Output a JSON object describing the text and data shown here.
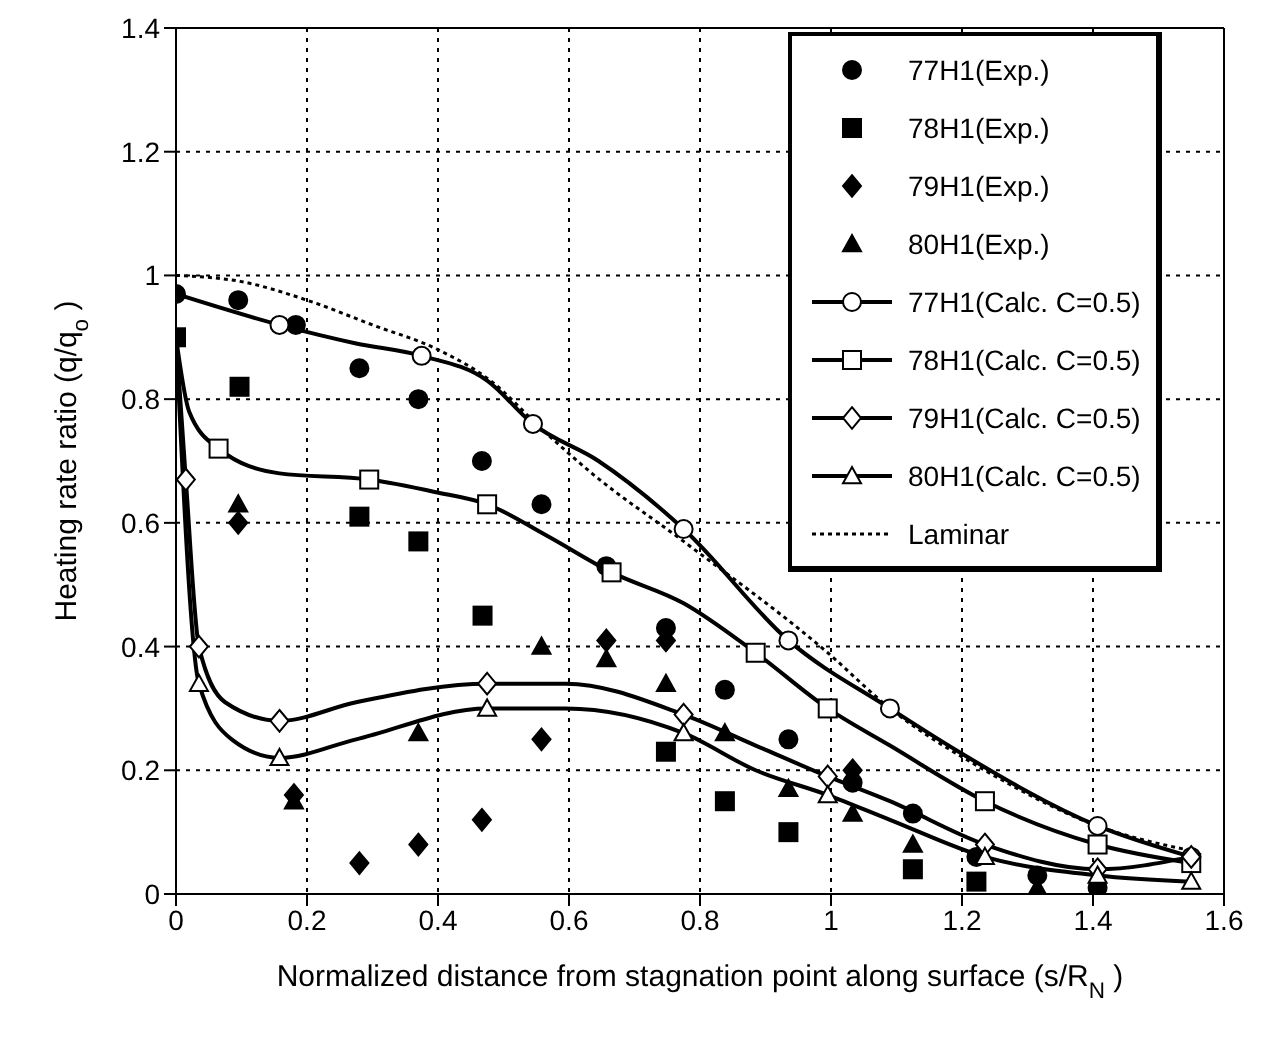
{
  "chart_data": {
    "type": "line",
    "xlabel": "Normalized distance from stagnation point along surface (s/R$_{N}$)",
    "ylabel": "Heating rate ratio (q/q$_{o}$)",
    "xlim": [
      0,
      1.6
    ],
    "xticks": [
      0,
      0.2,
      0.4,
      0.6,
      0.8,
      1,
      1.2,
      1.4,
      1.6
    ],
    "ylim": [
      0,
      1.4
    ],
    "yticks": [
      0,
      0.2,
      0.4,
      0.6,
      0.8,
      1,
      1.2,
      1.4
    ],
    "grid": true,
    "legend": "top right",
    "series": [
      {
        "name": "77H1(Exp.)",
        "type": "scatter",
        "marker": "circle",
        "color": "#000000",
        "x": [
          0,
          0.095,
          0.183,
          0.28,
          0.37,
          0.467,
          0.558,
          0.657,
          0.748,
          0.838,
          0.935,
          1.033,
          1.125,
          1.222,
          1.315,
          1.407
        ],
        "values": [
          0.97,
          0.96,
          0.92,
          0.85,
          0.8,
          0.7,
          0.63,
          0.53,
          0.43,
          0.33,
          0.25,
          0.18,
          0.13,
          0.06,
          0.03,
          0.01
        ]
      },
      {
        "name": "78H1(Exp.)",
        "type": "scatter",
        "marker": "square",
        "color": "#000000",
        "x": [
          0,
          0.097,
          0.28,
          0.37,
          0.468,
          0.748,
          0.838,
          0.935,
          1.125,
          1.222
        ],
        "values": [
          0.9,
          0.82,
          0.61,
          0.57,
          0.45,
          0.23,
          0.15,
          0.1,
          0.04,
          0.02
        ]
      },
      {
        "name": "79H1(Exp.)",
        "type": "scatter",
        "marker": "diamond",
        "color": "#000000",
        "x": [
          0.095,
          0.18,
          0.28,
          0.37,
          0.467,
          0.558,
          0.657,
          0.748,
          1.033
        ],
        "values": [
          0.6,
          0.16,
          0.05,
          0.08,
          0.12,
          0.25,
          0.41,
          0.41,
          0.2
        ]
      },
      {
        "name": "80H1(Exp.)",
        "type": "scatter",
        "marker": "triangle",
        "color": "#000000",
        "x": [
          0.095,
          0.18,
          0.37,
          0.558,
          0.657,
          0.748,
          0.838,
          0.935,
          1.033,
          1.125,
          1.315
        ],
        "values": [
          0.63,
          0.15,
          0.26,
          0.4,
          0.38,
          0.34,
          0.26,
          0.17,
          0.13,
          0.08,
          0.01
        ]
      },
      {
        "name": "77H1(Calc. C=0.5)",
        "marker": "circle",
        "color": "#000000",
        "x": [
          0,
          0.158,
          0.275,
          0.375,
          0.475,
          0.545,
          0.645,
          0.775,
          0.935,
          1.09,
          1.195,
          1.407,
          1.55
        ],
        "values": [
          0.97,
          0.92,
          0.89,
          0.87,
          0.83,
          0.76,
          0.7,
          0.59,
          0.41,
          0.3,
          0.23,
          0.11,
          0.06
        ]
      },
      {
        "name": "78H1(Calc. C=0.5)",
        "marker": "square",
        "color": "#000000",
        "x": [
          0,
          0.02,
          0.065,
          0.158,
          0.295,
          0.395,
          0.475,
          0.565,
          0.665,
          0.775,
          0.885,
          0.995,
          1.09,
          1.235,
          1.407,
          1.55
        ],
        "values": [
          0.9,
          0.78,
          0.72,
          0.68,
          0.67,
          0.65,
          0.63,
          0.58,
          0.52,
          0.47,
          0.39,
          0.3,
          0.24,
          0.15,
          0.08,
          0.05
        ]
      },
      {
        "name": "79H1(Calc. C=0.5)",
        "marker": "diamond",
        "color": "#000000",
        "x": [
          0,
          0.015,
          0.035,
          0.075,
          0.158,
          0.275,
          0.475,
          0.595,
          0.775,
          0.885,
          0.995,
          1.09,
          1.235,
          1.407,
          1.55
        ],
        "values": [
          0.9,
          0.67,
          0.4,
          0.31,
          0.28,
          0.31,
          0.34,
          0.34,
          0.29,
          0.24,
          0.19,
          0.15,
          0.08,
          0.04,
          0.06
        ]
      },
      {
        "name": "80H1(Calc. C=0.5)",
        "marker": "triangle",
        "color": "#000000",
        "x": [
          0,
          0.035,
          0.085,
          0.158,
          0.275,
          0.475,
          0.595,
          0.775,
          0.885,
          0.995,
          1.09,
          1.235,
          1.407,
          1.55
        ],
        "values": [
          0.9,
          0.34,
          0.25,
          0.22,
          0.25,
          0.3,
          0.3,
          0.26,
          0.2,
          0.16,
          0.12,
          0.06,
          0.03,
          0.02
        ]
      },
      {
        "name": "Laminar",
        "marker": "none",
        "line_style": "dotted",
        "color": "#000000",
        "x": [
          0,
          0.1,
          0.2,
          0.3,
          0.4,
          0.48,
          0.56,
          0.635,
          0.775,
          0.995,
          1.09,
          1.235,
          1.407,
          1.55
        ],
        "values": [
          1.0,
          0.99,
          0.96,
          0.92,
          0.88,
          0.83,
          0.75,
          0.68,
          0.57,
          0.39,
          0.3,
          0.2,
          0.11,
          0.07
        ]
      }
    ]
  }
}
